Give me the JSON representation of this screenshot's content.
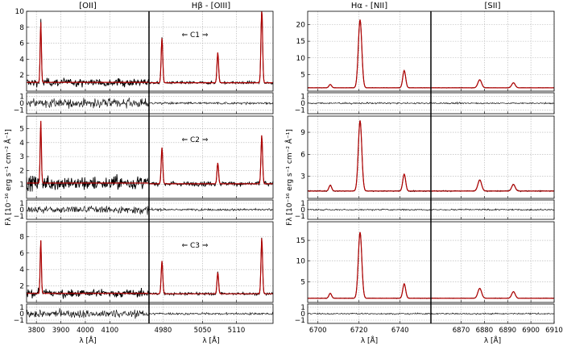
{
  "chart_data": {
    "type": "line",
    "ylabel": "Fλ [10⁻¹⁶ erg s⁻¹ cm⁻² Å⁻¹]",
    "xlabel": "λ [Å]",
    "grid": true,
    "colors": {
      "model": "#b00000",
      "data": "#000000",
      "grid": "#b0b0b0"
    },
    "residual_ylim": [
      -1.5,
      1.5
    ],
    "residual_ticks": [
      "1",
      "0",
      "−1"
    ],
    "clump_labels": [
      "⇐ C1 ⇒",
      "⇐ C2 ⇒",
      "⇐ C3 ⇒"
    ],
    "left": {
      "segments": [
        {
          "title": "[OII]",
          "xlim": [
            3760,
            4260
          ],
          "xticks": [
            3800,
            3900,
            4000,
            4100
          ],
          "xtick_labels": [
            "3800",
            "3900",
            "4000",
            "4100"
          ],
          "baseline": 1.1,
          "noise": 0.35,
          "res_noise": 0.45,
          "lines": [
            {
              "x": 3818,
              "sigma": 2.5,
              "amp": [
                7.6,
                4.5,
                6.5
              ]
            }
          ]
        },
        {
          "title": "Hβ - [OIII]",
          "xlim": [
            4955,
            5175
          ],
          "xticks": [
            5050,
            5110
          ],
          "xtick_labels": [
            "5050",
            "5110"
          ],
          "baseline": 1.05,
          "noise": 0.12,
          "res_noise": 0.12,
          "lines": [
            {
              "x": 4978,
              "sigma": 1.4,
              "amp": [
                5.6,
                2.6,
                4.0
              ]
            },
            {
              "x": 5077,
              "sigma": 1.4,
              "amp": [
                3.8,
                1.5,
                2.6
              ]
            },
            {
              "x": 5155,
              "sigma": 1.4,
              "amp": [
                9.7,
                3.5,
                6.8
              ]
            }
          ]
        }
      ],
      "segment_extra_ticks": [
        {
          "seg": 1,
          "x": 4980,
          "label": "4980"
        }
      ],
      "panels": [
        {
          "ylim": [
            0,
            10
          ],
          "yticks": [
            2,
            4,
            6,
            8,
            10
          ],
          "ytick_labels": [
            "2",
            "4",
            "6",
            "8",
            "10"
          ]
        },
        {
          "ylim": [
            0,
            5.9
          ],
          "yticks": [
            1,
            2,
            3,
            4,
            5
          ],
          "ytick_labels": [
            "1",
            "2",
            "3",
            "4",
            "5"
          ]
        },
        {
          "ylim": [
            0,
            9.8
          ],
          "yticks": [
            2,
            4,
            6,
            8
          ],
          "ytick_labels": [
            "2",
            "4",
            "6",
            "8"
          ]
        }
      ]
    },
    "right": {
      "segments": [
        {
          "title": "Hα - [NII]",
          "xlim": [
            6695,
            6755
          ],
          "xticks": [
            6700,
            6720,
            6740
          ],
          "xtick_labels": [
            "6700",
            "6720",
            "6740"
          ],
          "baseline": 1.0,
          "noise": 0.05,
          "res_noise": 0.08,
          "lines": [
            {
              "x": 6706,
              "sigma": 0.65,
              "amp": [
                1.0,
                0.8,
                1.2
              ]
            },
            {
              "x": 6720.5,
              "sigma": 0.85,
              "amp": [
                20.5,
                9.6,
                16.0
              ]
            },
            {
              "x": 6742,
              "sigma": 0.7,
              "amp": [
                5.2,
                2.3,
                3.5
              ]
            }
          ]
        },
        {
          "title": "[SII]",
          "xlim": [
            6857,
            6910
          ],
          "xticks": [
            6870,
            6880,
            6890,
            6900,
            6910
          ],
          "xtick_labels": [
            "6870",
            "6880",
            "6890",
            "6900",
            "6910"
          ],
          "baseline": 1.0,
          "noise": 0.05,
          "res_noise": 0.08,
          "lines": [
            {
              "x": 6878,
              "sigma": 0.8,
              "amp": [
                2.4,
                1.5,
                2.4
              ]
            },
            {
              "x": 6892.5,
              "sigma": 0.75,
              "amp": [
                1.5,
                0.9,
                1.6
              ]
            }
          ]
        }
      ],
      "panels": [
        {
          "ylim": [
            0,
            24
          ],
          "yticks": [
            5,
            10,
            15,
            20
          ],
          "ytick_labels": [
            "5",
            "10",
            "15",
            "20"
          ]
        },
        {
          "ylim": [
            0,
            11.2
          ],
          "yticks": [
            3,
            6,
            9
          ],
          "ytick_labels": [
            "3",
            "6",
            "9"
          ]
        },
        {
          "ylim": [
            0,
            19.5
          ],
          "yticks": [
            5,
            10,
            15
          ],
          "ytick_labels": [
            "5",
            "10",
            "15"
          ]
        }
      ]
    }
  }
}
